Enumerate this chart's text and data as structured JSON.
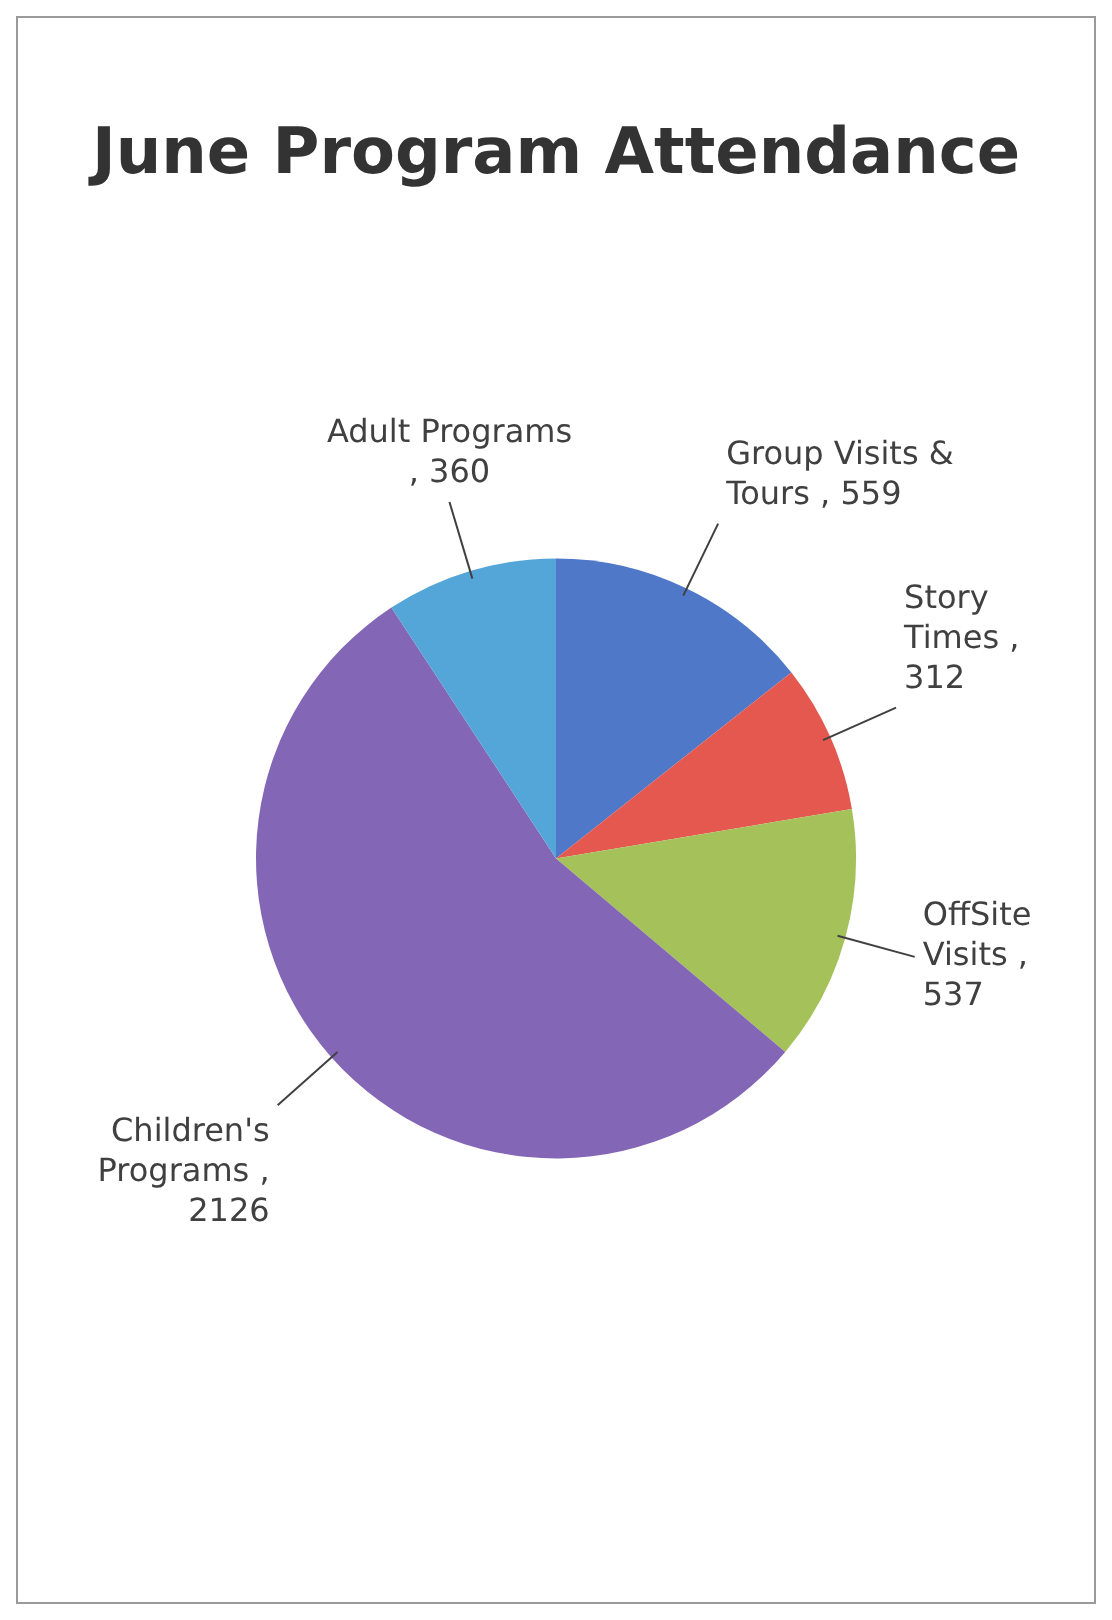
{
  "chart_data": {
    "type": "pie",
    "title": "June Program Attendance",
    "categories": [
      "Group Visits & Tours",
      "Story Times",
      "OffSite Visits",
      "Children's Programs",
      "Adult Programs"
    ],
    "values": [
      559,
      312,
      537,
      2126,
      360
    ],
    "value_labels": [
      ", 559",
      ", 312",
      ", 537",
      ", 2126",
      ", 360"
    ],
    "colors": [
      "#4f78c8",
      "#e5584f",
      "#a5c15a",
      "#8466b6",
      "#55a6d8"
    ],
    "legend": false
  }
}
